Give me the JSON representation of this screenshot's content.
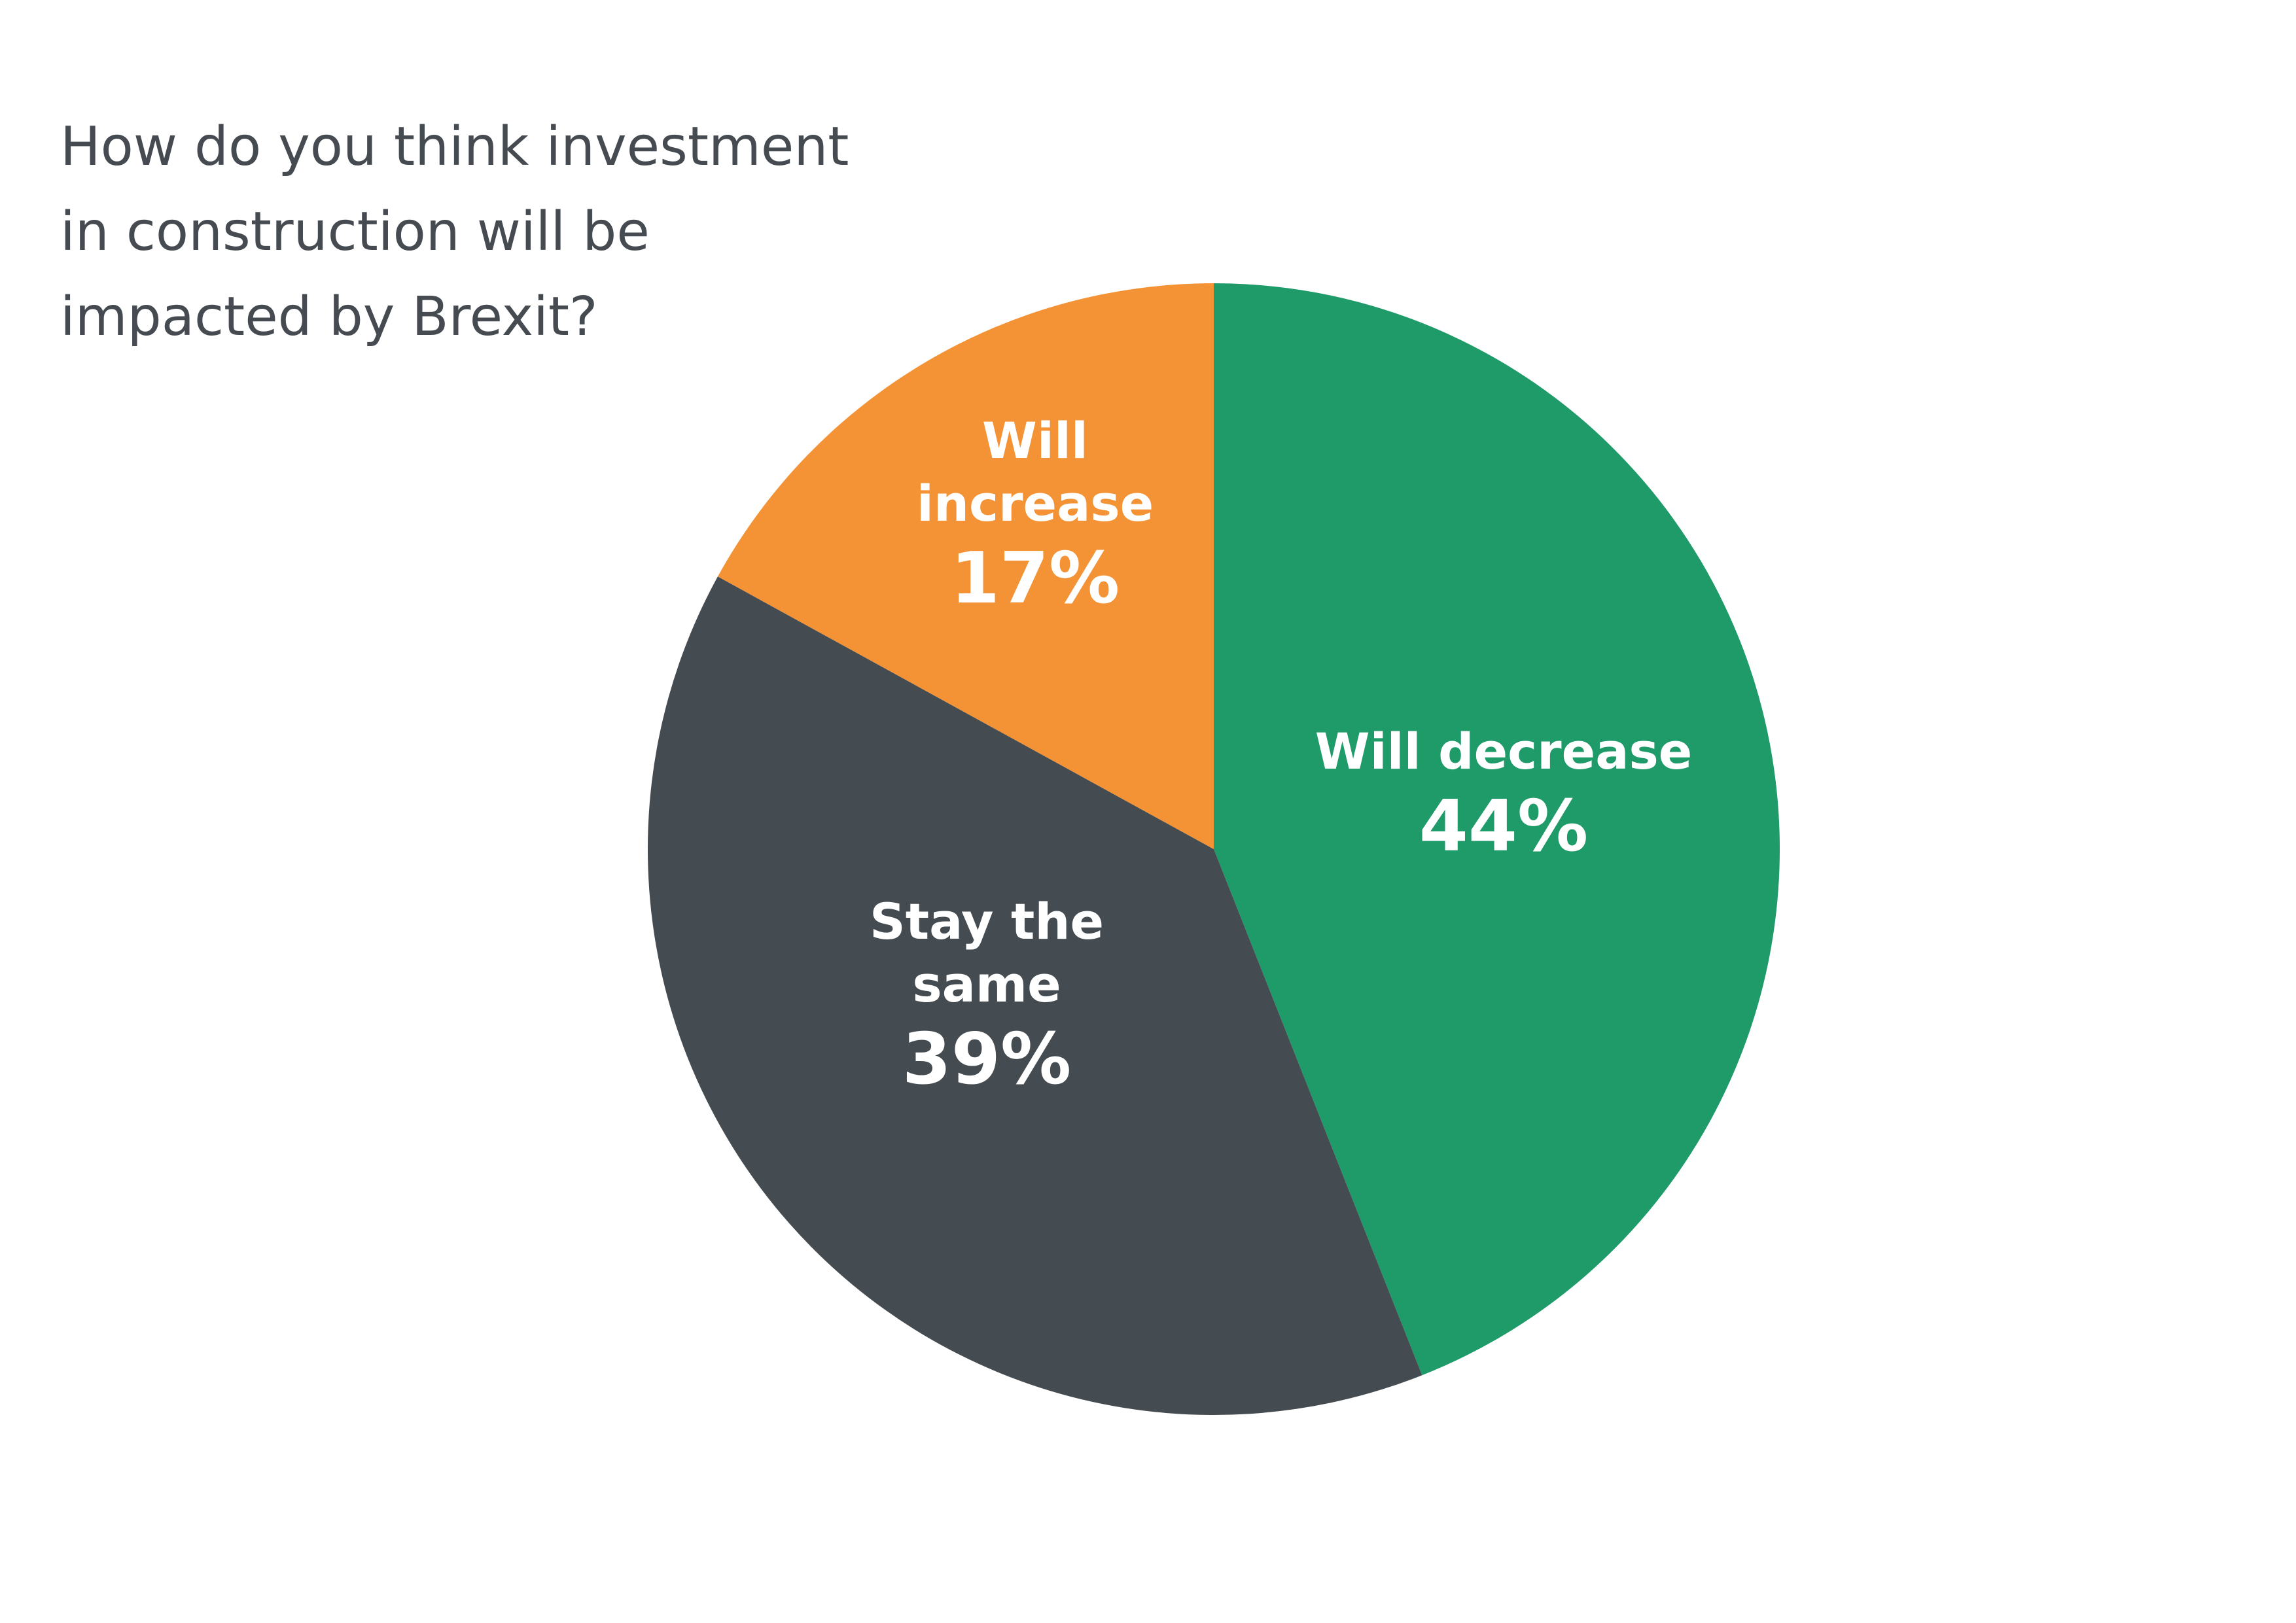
{
  "chart_data": {
    "type": "pie",
    "title_lines": [
      "How do you think investment",
      "in construction will be",
      "impacted by Brexit?"
    ],
    "slices": [
      {
        "label_lines": [
          "Will decrease"
        ],
        "value": 44,
        "value_text": "44%",
        "color": "#1f9a69"
      },
      {
        "label_lines": [
          "Stay the",
          "same"
        ],
        "value": 39,
        "value_text": "39%",
        "color": "#454c51"
      },
      {
        "label_lines": [
          "Will",
          "increase"
        ],
        "value": 17,
        "value_text": "17%",
        "color": "#f39336"
      }
    ],
    "start_angle_deg": 0,
    "direction": "clockwise",
    "legend": "none"
  }
}
